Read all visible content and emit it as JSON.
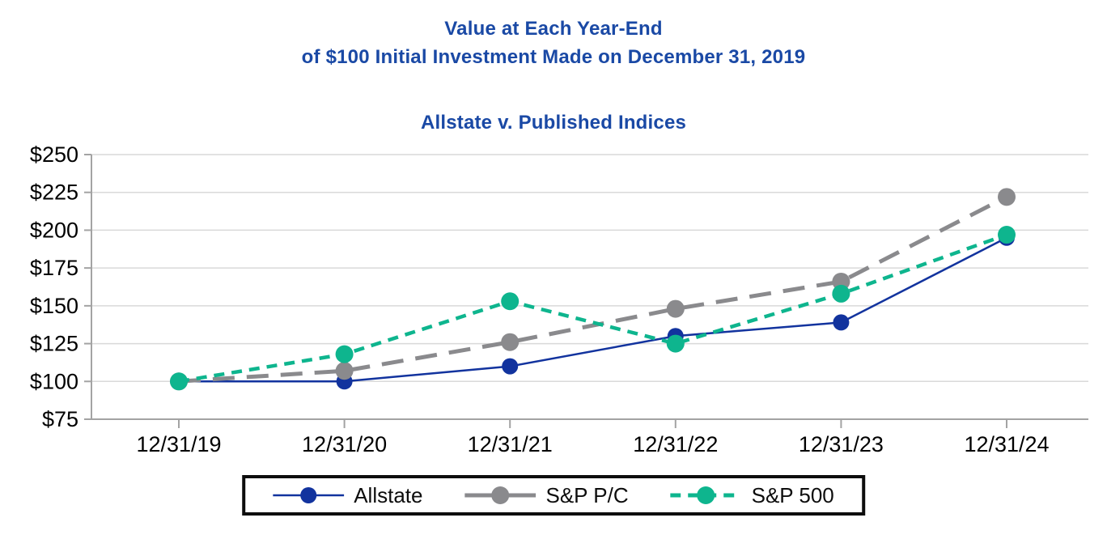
{
  "title": {
    "line1": "Value at Each Year-End",
    "line2": "of $100 Initial Investment Made on December 31, 2019",
    "line3": "Allstate v. Published Indices"
  },
  "chart_data": {
    "type": "line",
    "x": [
      "12/31/19",
      "12/31/20",
      "12/31/21",
      "12/31/22",
      "12/31/23",
      "12/31/24"
    ],
    "series": [
      {
        "name": "Allstate",
        "values": [
          100,
          100,
          110,
          130,
          139,
          195
        ],
        "color": "#12339E",
        "dash": "solid",
        "line_width": 2.5,
        "marker_radius": 10
      },
      {
        "name": "S&P P/C",
        "values": [
          100,
          107,
          126,
          148,
          166,
          222
        ],
        "color": "#8A8A8D",
        "dash": "long-dash",
        "line_width": 5,
        "marker_radius": 11
      },
      {
        "name": "S&P 500",
        "values": [
          100,
          118,
          153,
          125,
          158,
          197
        ],
        "color": "#0EB58E",
        "dash": "dash",
        "line_width": 4.5,
        "marker_radius": 11
      }
    ],
    "ylim": [
      75,
      250
    ],
    "ytick_step": 25,
    "ytick_labels": [
      "$75",
      "$100",
      "$125",
      "$150",
      "$175",
      "$200",
      "$225",
      "$250"
    ],
    "xlabel": "",
    "ylabel": "",
    "grid": "horizontal",
    "legend_position": "bottom-boxed"
  },
  "legend": {
    "items": [
      {
        "label": "Allstate"
      },
      {
        "label": "S&P P/C"
      },
      {
        "label": "S&P 500"
      }
    ]
  },
  "colors": {
    "title_blue": "#1A49A5",
    "axis_line": "#A3A3A3",
    "gridline": "#D9D9D9",
    "axis_text": "#000000",
    "legend_border": "#0d0d0d"
  }
}
